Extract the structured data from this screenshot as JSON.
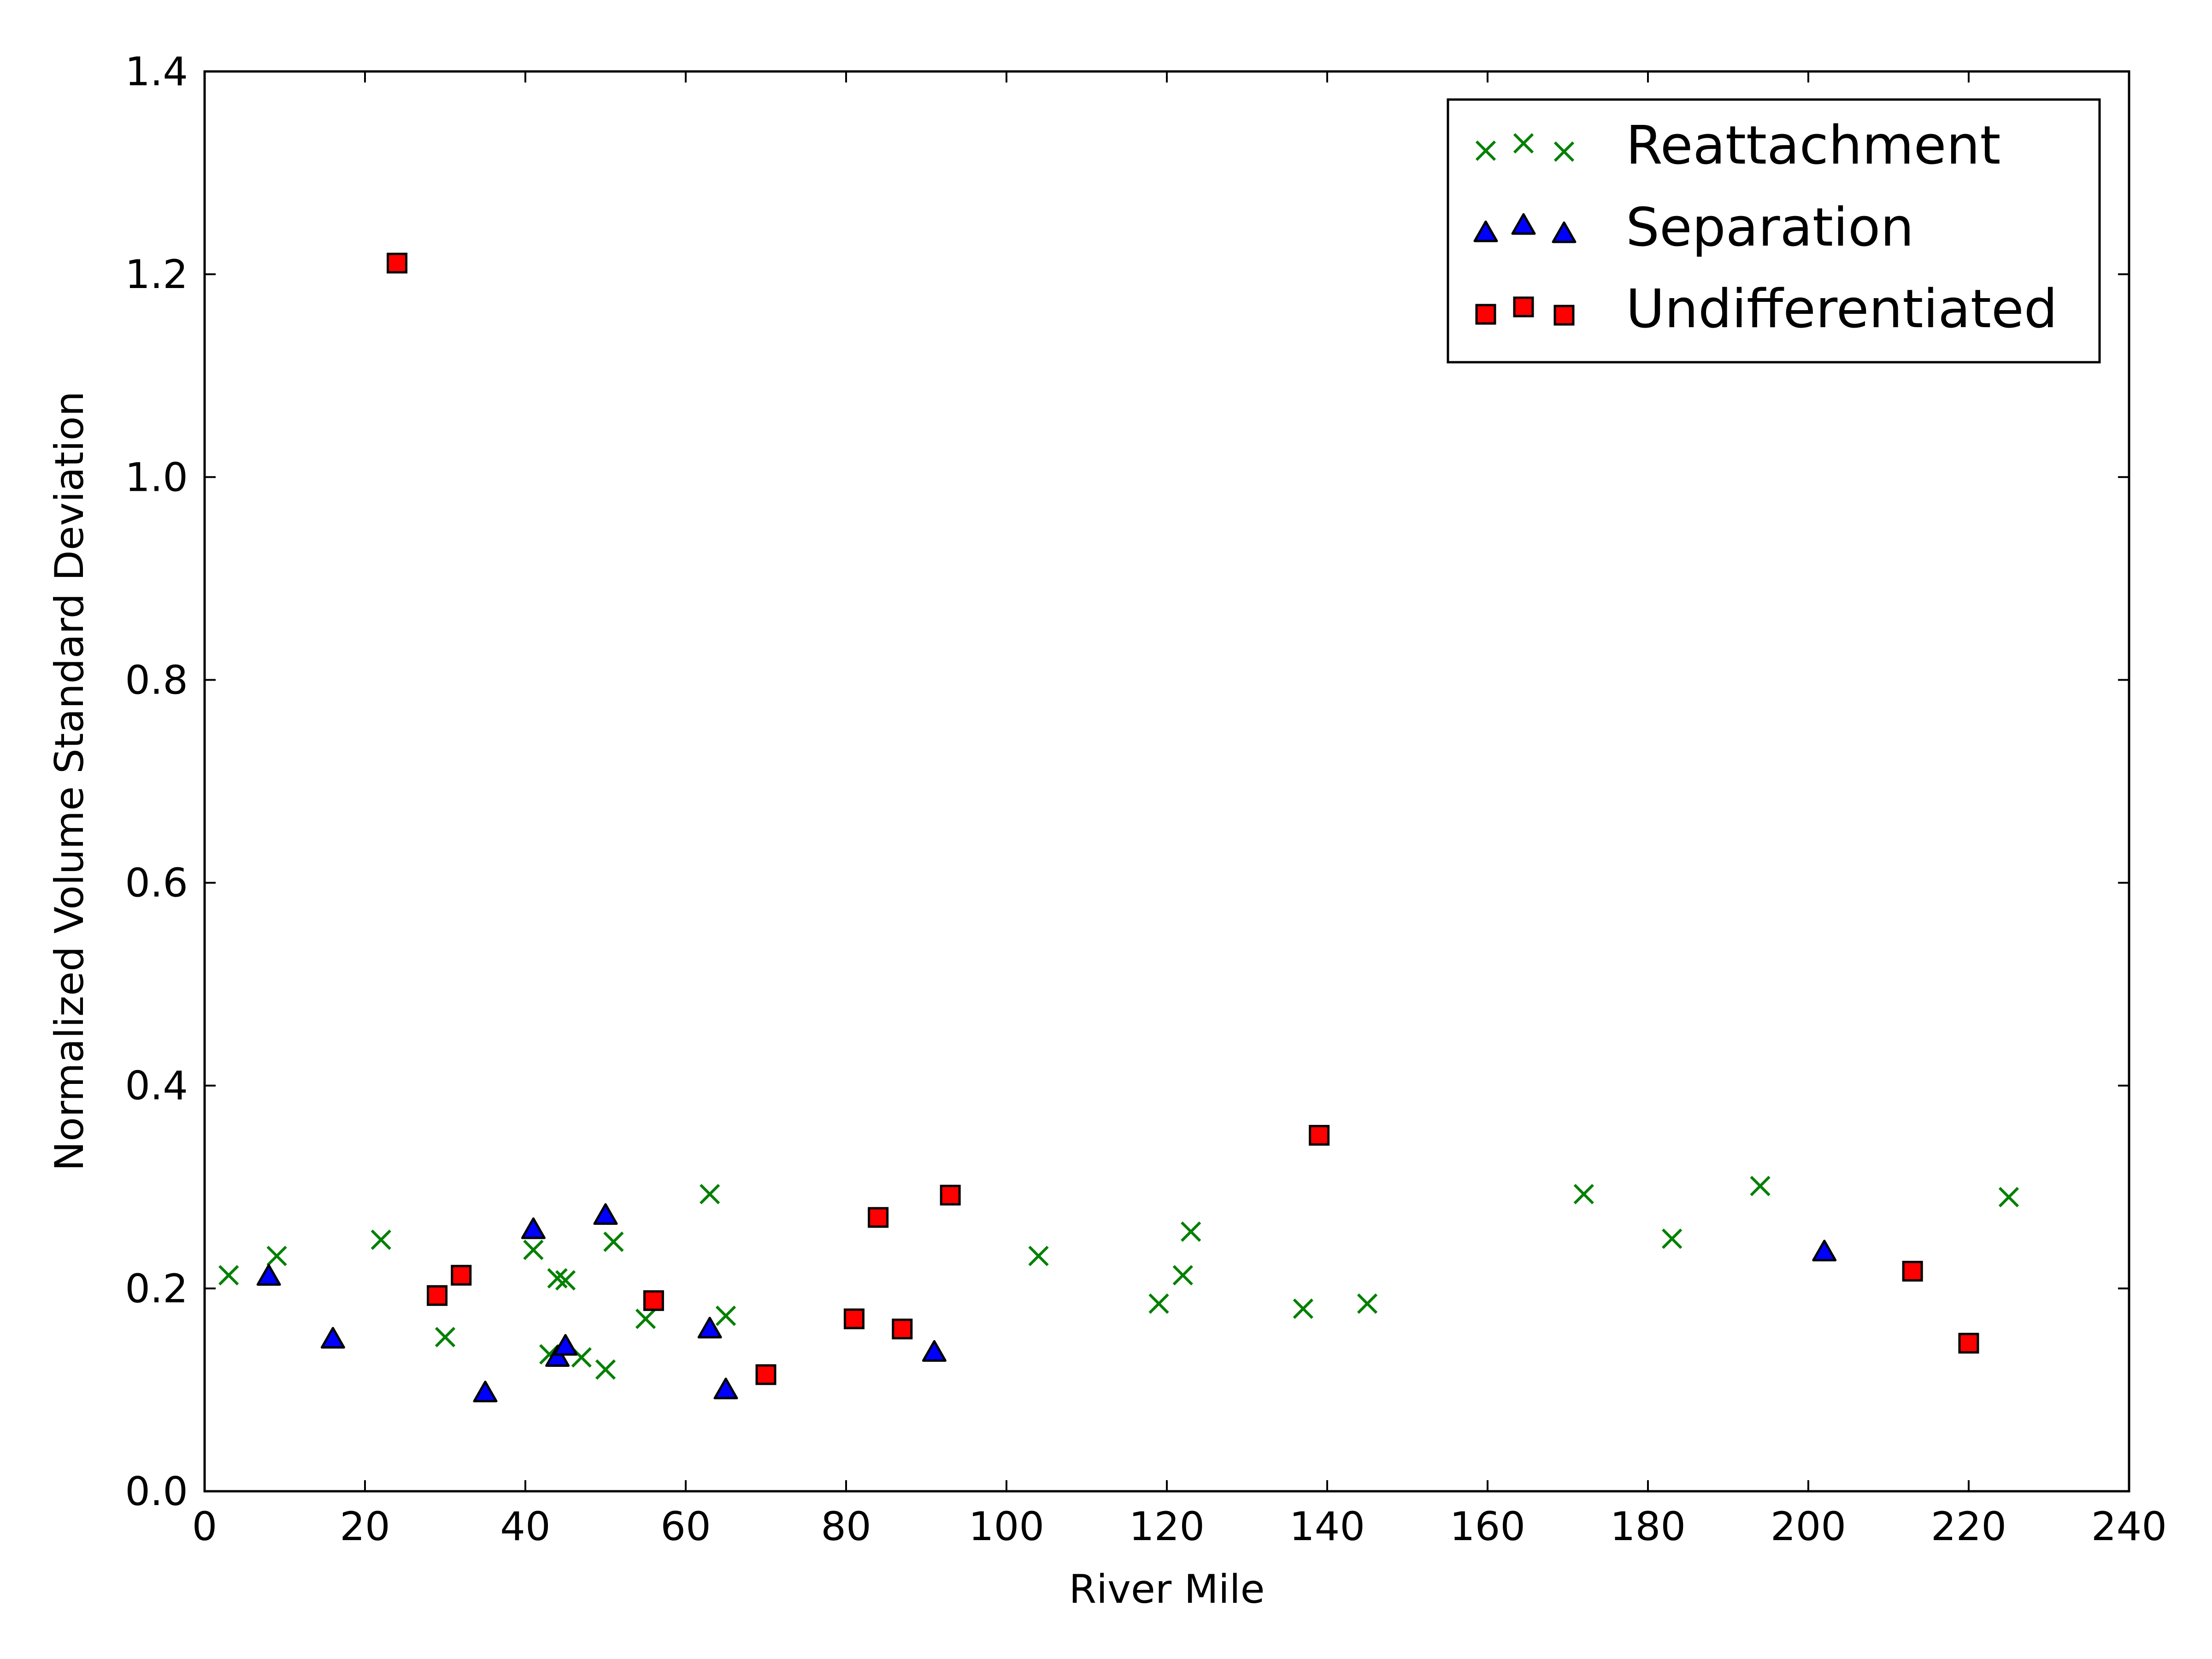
{
  "chart_data": {
    "type": "scatter",
    "title": "",
    "xlabel": "River Mile",
    "ylabel": "Normalized Volume Standard Deviation",
    "xlim": [
      0,
      240
    ],
    "ylim": [
      0.0,
      1.4
    ],
    "x_ticks": [
      "0",
      "20",
      "40",
      "60",
      "80",
      "100",
      "120",
      "140",
      "160",
      "180",
      "200",
      "220",
      "240"
    ],
    "y_ticks": [
      "0.0",
      "0.2",
      "0.4",
      "0.6",
      "0.8",
      "1.0",
      "1.2",
      "1.4"
    ],
    "grid": false,
    "legend_position": "top-right",
    "series": [
      {
        "name": "Reattachment",
        "marker": "x",
        "color": "#008000",
        "points": [
          [
            3,
            0.213
          ],
          [
            9,
            0.232
          ],
          [
            22,
            0.248
          ],
          [
            30,
            0.152
          ],
          [
            41,
            0.238
          ],
          [
            43,
            0.135
          ],
          [
            44,
            0.21
          ],
          [
            45,
            0.208
          ],
          [
            47,
            0.132
          ],
          [
            50,
            0.12
          ],
          [
            51,
            0.246
          ],
          [
            55,
            0.17
          ],
          [
            63,
            0.293
          ],
          [
            65,
            0.173
          ],
          [
            104,
            0.232
          ],
          [
            119,
            0.185
          ],
          [
            122,
            0.213
          ],
          [
            123,
            0.256
          ],
          [
            137,
            0.18
          ],
          [
            145,
            0.185
          ],
          [
            172,
            0.293
          ],
          [
            183,
            0.249
          ],
          [
            194,
            0.301
          ],
          [
            225,
            0.29
          ]
        ]
      },
      {
        "name": "Separation",
        "marker": "triangle",
        "color": "#0000ff",
        "points": [
          [
            8,
            0.212
          ],
          [
            16,
            0.15
          ],
          [
            35,
            0.097
          ],
          [
            41,
            0.258
          ],
          [
            44,
            0.132
          ],
          [
            45,
            0.143
          ],
          [
            50,
            0.272
          ],
          [
            63,
            0.16
          ],
          [
            65,
            0.1
          ],
          [
            91,
            0.137
          ],
          [
            202,
            0.236
          ]
        ]
      },
      {
        "name": "Undifferentiated",
        "marker": "square",
        "color": "#ff0000",
        "points": [
          [
            24,
            1.211
          ],
          [
            29,
            0.193
          ],
          [
            32,
            0.213
          ],
          [
            56,
            0.188
          ],
          [
            70,
            0.115
          ],
          [
            81,
            0.17
          ],
          [
            84,
            0.27
          ],
          [
            87,
            0.16
          ],
          [
            93,
            0.292
          ],
          [
            139,
            0.351
          ],
          [
            213,
            0.217
          ],
          [
            220,
            0.146
          ]
        ]
      }
    ]
  }
}
